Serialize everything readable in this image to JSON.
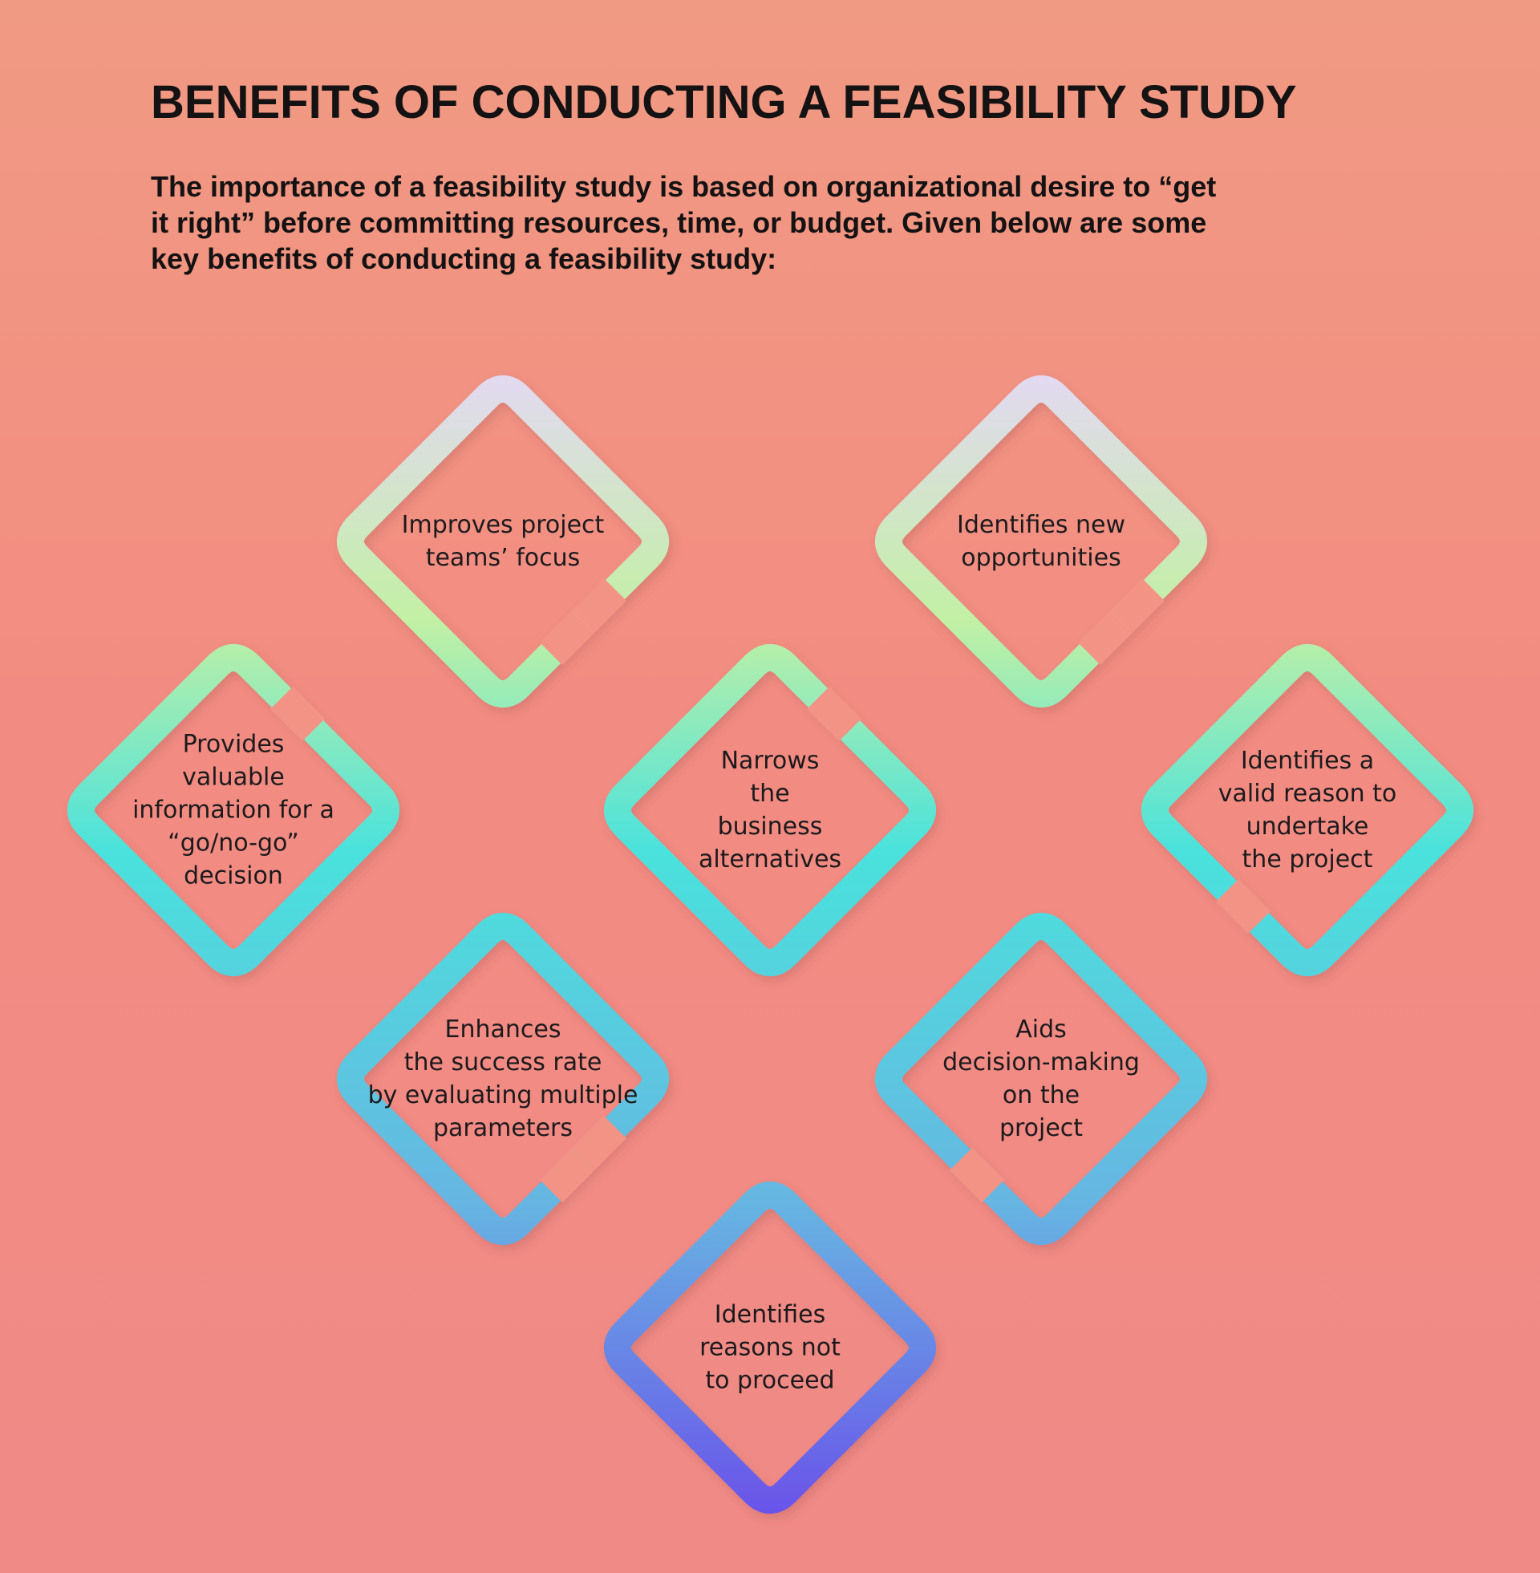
{
  "header": {
    "title": "BENEFITS OF CONDUCTING A FEASIBILITY STUDY",
    "intro_lines": [
      "The importance of a feasibility study is based on organizational desire to “get",
      "it right” before committing resources, time, or budget. Given below are some",
      "key benefits of conducting a feasibility study:"
    ]
  },
  "colors": {
    "title_text": "#141212",
    "label_text": "#1c1a1c",
    "gradient_top": "#e4d8f4",
    "gradient_upper": "#c2f0a4",
    "gradient_mid": "#4ae2dc",
    "gradient_lower": "#66b6e2",
    "gradient_bottom": "#6a50ea"
  },
  "benefits": [
    {
      "id": "teams-focus",
      "lines": [
        "Improves project",
        "teams’ focus"
      ]
    },
    {
      "id": "new-opportunities",
      "lines": [
        "Identifies new",
        "opportunities"
      ]
    },
    {
      "id": "go-no-go",
      "lines": [
        "Provides",
        "valuable",
        "information for a",
        "“go/no-go”",
        "decision"
      ]
    },
    {
      "id": "narrows-alternatives",
      "lines": [
        "Narrows",
        "the",
        "business",
        "alternatives"
      ]
    },
    {
      "id": "valid-reason",
      "lines": [
        "Identifies a",
        "valid reason to",
        "undertake",
        "the project"
      ]
    },
    {
      "id": "success-rate",
      "lines": [
        "Enhances",
        "the success rate",
        "by evaluating multiple",
        "parameters"
      ]
    },
    {
      "id": "aids-decision",
      "lines": [
        "Aids",
        "decision-making",
        "on the",
        "project"
      ]
    },
    {
      "id": "reasons-not-to-proceed",
      "lines": [
        "Identifies",
        "reasons not",
        "to proceed"
      ]
    }
  ]
}
